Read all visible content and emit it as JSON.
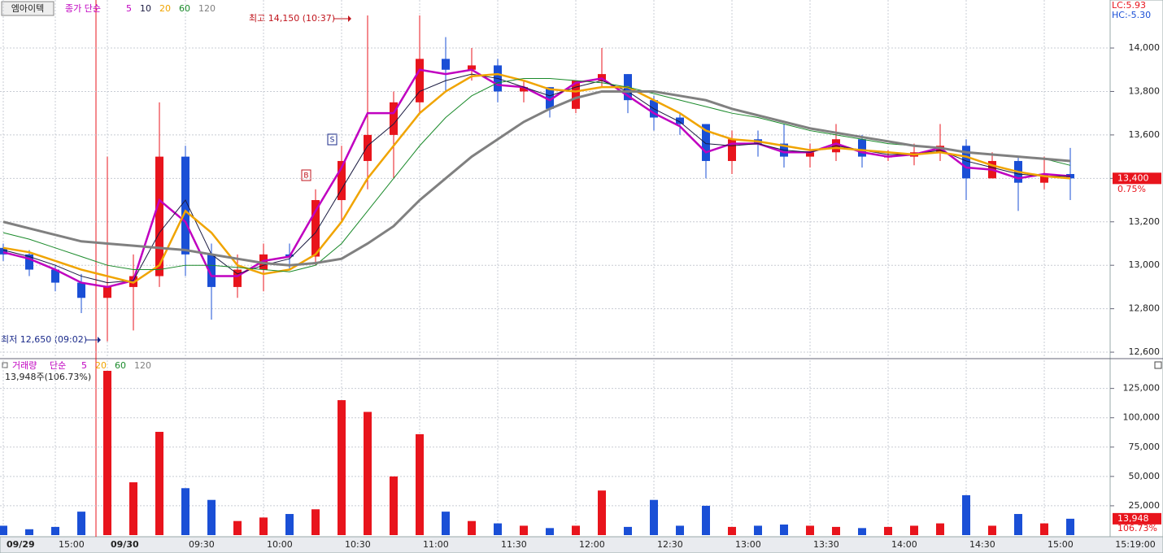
{
  "chart_data": [
    {
      "type": "candlestick",
      "title": "엠아이텍",
      "subtitle": "종가 단순",
      "categories": [
        "09/29",
        null,
        "15:00",
        null,
        "09/30",
        null,
        null,
        "09:30",
        null,
        null,
        "10:00",
        null,
        null,
        "10:30",
        null,
        null,
        "11:00",
        null,
        null,
        "11:30",
        null,
        null,
        "12:00",
        null,
        null,
        "12:30",
        null,
        null,
        "13:00",
        null,
        null,
        "13:30",
        null,
        null,
        "14:00",
        null,
        null,
        "14:30",
        null,
        null,
        "15:00",
        null
      ],
      "open": [
        13080,
        13050,
        12980,
        12920,
        12850,
        12900,
        12950,
        13500,
        13050,
        12900,
        12980,
        13050,
        13040,
        13300,
        13480,
        13600,
        13750,
        13950,
        13900,
        13920,
        13800,
        13820,
        13720,
        13850,
        13880,
        13760,
        13680,
        13650,
        13480,
        13580,
        13560,
        13500,
        13520,
        13580,
        13500,
        13500,
        13520,
        13550,
        13400,
        13480,
        13380,
        13420
      ],
      "high": [
        13100,
        13070,
        13000,
        12960,
        13500,
        13050,
        13750,
        13550,
        13100,
        13050,
        13100,
        13100,
        13350,
        13550,
        14150,
        13800,
        14150,
        14050,
        14000,
        13950,
        13850,
        13820,
        13850,
        14000,
        13880,
        13780,
        13700,
        13650,
        13620,
        13620,
        13650,
        13560,
        13650,
        13600,
        13530,
        13560,
        13650,
        13580,
        13520,
        13500,
        13500,
        13540
      ],
      "low": [
        13020,
        12950,
        12880,
        12780,
        12650,
        12700,
        12900,
        12950,
        12750,
        12850,
        12880,
        12980,
        13000,
        13200,
        13350,
        13400,
        13700,
        13800,
        13850,
        13750,
        13750,
        13680,
        13700,
        13820,
        13700,
        13620,
        13600,
        13400,
        13420,
        13500,
        13450,
        13450,
        13480,
        13450,
        13480,
        13460,
        13480,
        13300,
        13400,
        13250,
        13350,
        13300
      ],
      "close": [
        13050,
        12980,
        12920,
        12850,
        12900,
        12950,
        13500,
        13050,
        12900,
        12980,
        13050,
        13040,
        13300,
        13480,
        13600,
        13750,
        13950,
        13900,
        13920,
        13800,
        13820,
        13720,
        13850,
        13880,
        13760,
        13680,
        13650,
        13480,
        13580,
        13560,
        13500,
        13520,
        13580,
        13500,
        13500,
        13520,
        13550,
        13400,
        13480,
        13380,
        13420,
        13400
      ],
      "up_color": "#e8141c",
      "down_color": "#1a4fd6",
      "series": [
        {
          "name": "5",
          "color": "#c000c0",
          "width": 2.5,
          "values": [
            13060,
            13030,
            12980,
            12920,
            12900,
            12930,
            13300,
            13200,
            12950,
            12950,
            13020,
            13040,
            13250,
            13450,
            13700,
            13700,
            13900,
            13880,
            13900,
            13830,
            13820,
            13760,
            13840,
            13860,
            13780,
            13700,
            13640,
            13520,
            13560,
            13560,
            13520,
            13520,
            13560,
            13520,
            13500,
            13510,
            13540,
            13450,
            13440,
            13400,
            13420,
            13410
          ]
        },
        {
          "name": "10",
          "color": "#1a1a40",
          "width": 1,
          "values": [
            13070,
            13040,
            13000,
            12950,
            12920,
            12930,
            13150,
            13300,
            13050,
            12960,
            13000,
            13030,
            13150,
            13350,
            13550,
            13650,
            13800,
            13850,
            13880,
            13860,
            13820,
            13780,
            13820,
            13850,
            13800,
            13720,
            13660,
            13560,
            13550,
            13560,
            13530,
            13520,
            13550,
            13530,
            13510,
            13510,
            13530,
            13480,
            13450,
            13420,
            13410,
            13410
          ]
        },
        {
          "name": "20",
          "color": "#f0a400",
          "width": 2.5,
          "values": [
            13080,
            13060,
            13020,
            12980,
            12950,
            12920,
            13000,
            13250,
            13150,
            13000,
            12960,
            12980,
            13050,
            13200,
            13400,
            13550,
            13700,
            13800,
            13870,
            13880,
            13850,
            13810,
            13800,
            13820,
            13820,
            13760,
            13700,
            13620,
            13580,
            13570,
            13550,
            13530,
            13540,
            13530,
            13520,
            13510,
            13520,
            13500,
            13460,
            13430,
            13410,
            13400
          ]
        },
        {
          "name": "60",
          "color": "#1a8a2a",
          "width": 1,
          "values": [
            13150,
            13120,
            13080,
            13040,
            13000,
            12980,
            12980,
            13000,
            13000,
            12990,
            12980,
            12970,
            13000,
            13100,
            13250,
            13400,
            13550,
            13680,
            13780,
            13840,
            13860,
            13860,
            13850,
            13840,
            13820,
            13790,
            13760,
            13730,
            13700,
            13680,
            13650,
            13620,
            13600,
            13580,
            13560,
            13550,
            13540,
            13520,
            13510,
            13500,
            13490,
            13460
          ]
        },
        {
          "name": "120",
          "color": "#808080",
          "width": 3,
          "values": [
            13200,
            13170,
            13140,
            13110,
            13100,
            13090,
            13080,
            13070,
            13050,
            13030,
            13010,
            13000,
            13010,
            13030,
            13100,
            13180,
            13300,
            13400,
            13500,
            13580,
            13660,
            13720,
            13770,
            13800,
            13800,
            13800,
            13780,
            13760,
            13720,
            13690,
            13660,
            13630,
            13610,
            13590,
            13570,
            13550,
            13540,
            13520,
            13510,
            13500,
            13490,
            13480
          ]
        }
      ],
      "ylim": [
        12574,
        14221
      ],
      "yticks": [
        {
          "value": 12600,
          "label": "12,600"
        },
        {
          "value": 12800,
          "label": "12,800"
        },
        {
          "value": 13000,
          "label": "13,000"
        },
        {
          "value": 13200,
          "label": "13,200"
        },
        {
          "value": 13400,
          "label": "13,400"
        },
        {
          "value": 13600,
          "label": "13,600"
        },
        {
          "value": 13800,
          "label": "13,800"
        },
        {
          "value": 14000,
          "label": "14,000"
        }
      ],
      "grid": true,
      "high_label": "최고 14,150 (10:37)",
      "low_label": "최저 12,650 (09:02)",
      "buy_signal": "B",
      "sell_signal": "S",
      "lc_label": "LC:5.93",
      "hc_label": "HC:-5.30",
      "last_price": {
        "value": 13400,
        "label": "13,400"
      },
      "last_change": "0.75%",
      "cursor_time": "15:19:00"
    },
    {
      "type": "bar",
      "title": "거래량",
      "subtitle": "단순",
      "ma_labels": [
        "5",
        "20",
        "60",
        "120"
      ],
      "ma_colors": [
        "#c000c0",
        "#f0a400",
        "#1a8a2a",
        "#808080"
      ],
      "info": "13,948주(106.73%)",
      "values": [
        8000,
        5000,
        7000,
        20000,
        140000,
        45000,
        88000,
        40000,
        30000,
        12000,
        15000,
        18000,
        22000,
        115000,
        105000,
        50000,
        86000,
        20000,
        12000,
        10000,
        8000,
        6000,
        8000,
        38000,
        7000,
        30000,
        8000,
        25000,
        7000,
        8000,
        9000,
        8000,
        7000,
        6000,
        7000,
        8000,
        10000,
        34000,
        8000,
        18000,
        10000,
        13948
      ],
      "ylim": [
        0,
        149000
      ],
      "yticks": [
        {
          "value": 25000,
          "label": "25,000"
        },
        {
          "value": 50000,
          "label": "50,000"
        },
        {
          "value": 75000,
          "label": "75,000"
        },
        {
          "value": 100000,
          "label": "100,000"
        },
        {
          "value": 125000,
          "label": "125,000"
        }
      ],
      "grid": true,
      "last_volume": {
        "value": 13948,
        "label": "13,948"
      },
      "last_change": "106.73%"
    }
  ]
}
